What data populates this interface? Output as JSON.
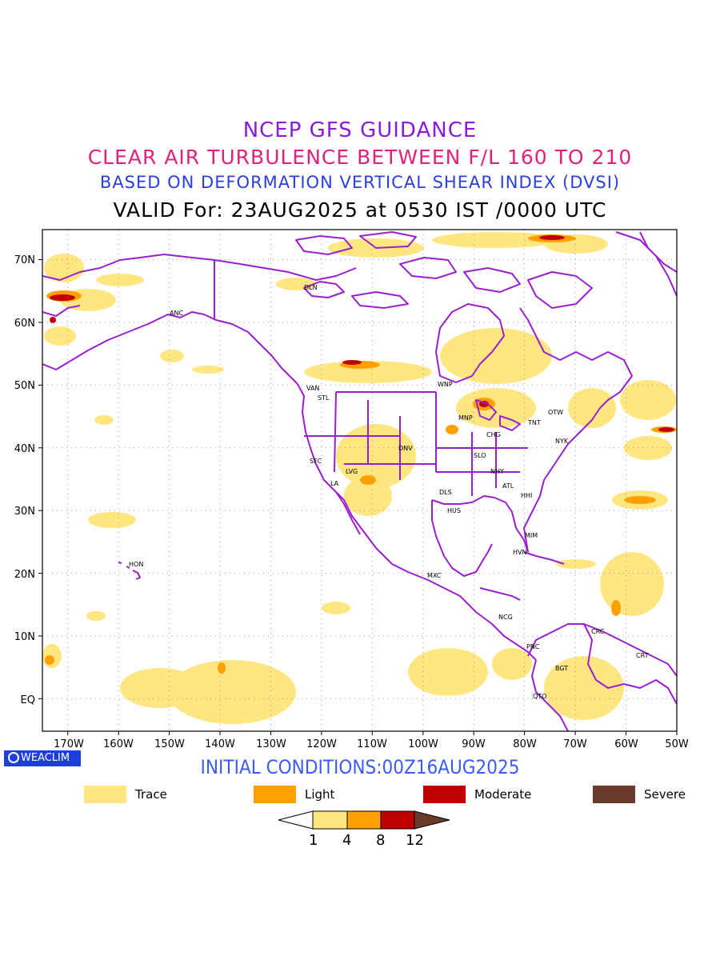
{
  "titles": {
    "line1": "NCEP GFS GUIDANCE",
    "line2": "CLEAR AIR TURBULENCE BETWEEN F/L 160 TO 210",
    "line3": "BASED ON DEFORMATION VERTICAL SHEAR INDEX (DVSI)",
    "line4": "VALID For: 23AUG2025 at 0530 IST /0000 UTC"
  },
  "map": {
    "lat_labels": [
      "70N",
      "60N",
      "50N",
      "40N",
      "30N",
      "20N",
      "10N",
      "EQ"
    ],
    "lon_labels": [
      "170W",
      "160W",
      "150W",
      "140W",
      "130W",
      "120W",
      "110W",
      "100W",
      "90W",
      "80W",
      "70W",
      "60W",
      "50W"
    ],
    "lon_range": [
      -175,
      -50
    ],
    "lat_range": [
      -5,
      75
    ],
    "grid": "dotted",
    "coastline_color": "#9b1fd0",
    "cities": [
      "DLN",
      "ANC",
      "VAN",
      "STL",
      "WNP",
      "MNP",
      "TNT",
      "OTW",
      "CHG",
      "NYK",
      "DNV",
      "SFC",
      "LVG",
      "LA",
      "SLO",
      "NHY",
      "ATL",
      "DLS",
      "HHI",
      "HUS",
      "MIM",
      "HVN",
      "HON",
      "MXC",
      "NCG",
      "CRC",
      "PNC",
      "BGT",
      "CRT",
      "QTO"
    ]
  },
  "badge": "WEACLIM",
  "initial_conditions": "INITIAL CONDITIONS:00Z16AUG2025",
  "legend": [
    {
      "label": "Trace",
      "color": "#ffe680"
    },
    {
      "label": "Light",
      "color": "#ffa000"
    },
    {
      "label": "Moderate",
      "color": "#c00000"
    },
    {
      "label": "Severe",
      "color": "#6b3a2a"
    }
  ],
  "colorbar": {
    "ticks": [
      "1",
      "4",
      "8",
      "12"
    ],
    "colors": [
      "#ffffff",
      "#ffe680",
      "#ffa000",
      "#c00000",
      "#6b3a2a"
    ]
  }
}
